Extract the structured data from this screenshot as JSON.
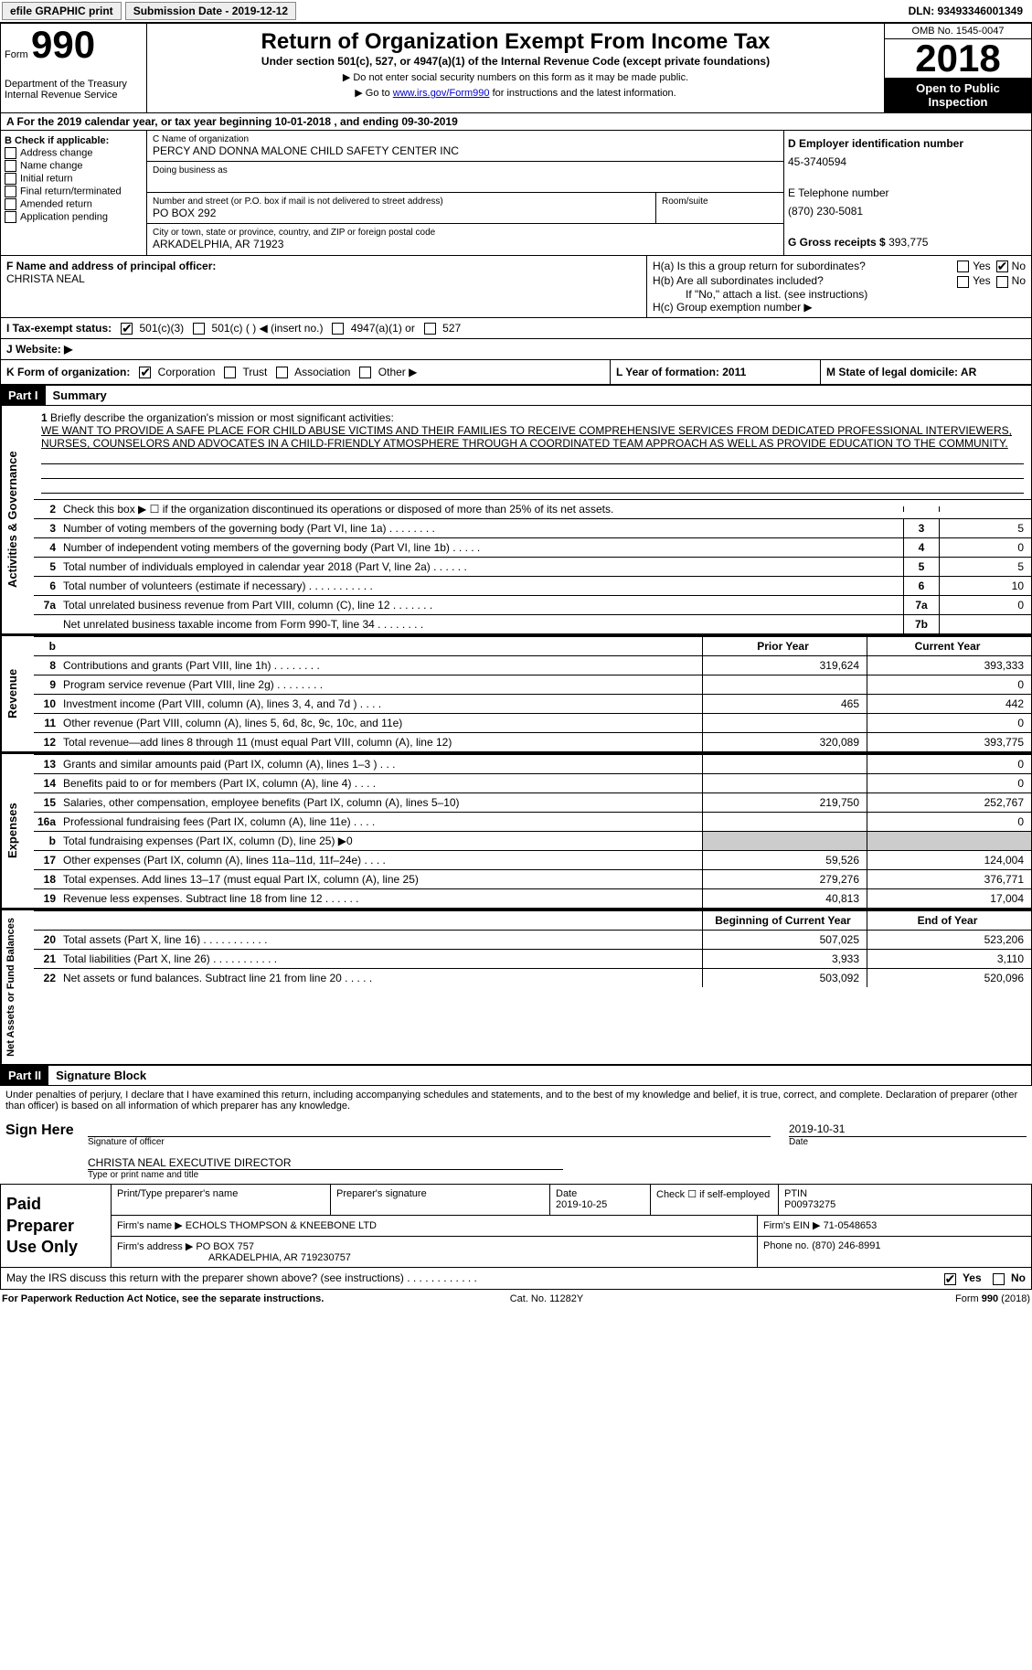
{
  "top": {
    "efile": "efile GRAPHIC print",
    "sub_btn": "Submission Date - 2019-12-12",
    "dln": "DLN: 93493346001349"
  },
  "header": {
    "form_word": "Form",
    "form_num": "990",
    "dept": "Department of the Treasury\nInternal Revenue Service",
    "title": "Return of Organization Exempt From Income Tax",
    "sub": "Under section 501(c), 527, or 4947(a)(1) of the Internal Revenue Code (except private foundations)",
    "note1": "▶ Do not enter social security numbers on this form as it may be made public.",
    "note2_pre": "▶ Go to ",
    "note2_link": "www.irs.gov/Form990",
    "note2_post": " for instructions and the latest information.",
    "omb": "OMB No. 1545-0047",
    "year": "2018",
    "open": "Open to Public Inspection"
  },
  "period": "A For the 2019 calendar year, or tax year beginning 10-01-2018    , and ending 09-30-2019",
  "b": {
    "title": "B Check if applicable:",
    "items": [
      "Address change",
      "Name change",
      "Initial return",
      "Final return/terminated",
      "Amended return",
      "Application pending"
    ]
  },
  "c": {
    "label": "C Name of organization",
    "name": "PERCY AND DONNA MALONE CHILD SAFETY CENTER INC",
    "dba_label": "Doing business as",
    "addr_label": "Number and street (or P.O. box if mail is not delivered to street address)",
    "room_label": "Room/suite",
    "addr": "PO BOX 292",
    "city_label": "City or town, state or province, country, and ZIP or foreign postal code",
    "city": "ARKADELPHIA, AR   71923"
  },
  "d": {
    "label": "D Employer identification number",
    "val": "45-3740594"
  },
  "e": {
    "label": "E Telephone number",
    "val": "(870) 230-5081"
  },
  "g": {
    "label": "G Gross receipts $",
    "val": "393,775"
  },
  "f": {
    "label": "F  Name and address of principal officer:",
    "name": "CHRISTA NEAL"
  },
  "h": {
    "a": "H(a)  Is this a group return for subordinates?",
    "b": "H(b)  Are all subordinates included?",
    "note": "If \"No,\" attach a list. (see instructions)",
    "c": "H(c)  Group exemption number ▶",
    "yes": "Yes",
    "no": "No"
  },
  "i": {
    "label": "I    Tax-exempt status:",
    "o1": "501(c)(3)",
    "o2": "501(c) (  ) ◀ (insert no.)",
    "o3": "4947(a)(1) or",
    "o4": "527"
  },
  "j": {
    "label": "J    Website: ▶"
  },
  "k": {
    "label": "K Form of organization:",
    "o1": "Corporation",
    "o2": "Trust",
    "o3": "Association",
    "o4": "Other ▶"
  },
  "l": {
    "label": "L Year of formation: 2011"
  },
  "m": {
    "label": "M State of legal domicile: AR"
  },
  "part1": {
    "hdr": "Part I",
    "title": "Summary"
  },
  "mission": {
    "n": "1",
    "label": "Briefly describe the organization's mission or most significant activities:",
    "text": "WE WANT TO PROVIDE A SAFE PLACE FOR CHILD ABUSE VICTIMS AND THEIR FAMILIES TO RECEIVE COMPREHENSIVE SERVICES FROM DEDICATED PROFESSIONAL INTERVIEWERS, NURSES, COUNSELORS AND ADVOCATES IN A CHILD-FRIENDLY ATMOSPHERE THROUGH A COORDINATED TEAM APPROACH AS WELL AS PROVIDE EDUCATION TO THE COMMUNITY."
  },
  "side": {
    "ag": "Activities & Governance",
    "rev": "Revenue",
    "exp": "Expenses",
    "na": "Net Assets or Fund Balances"
  },
  "rows_num": [
    {
      "n": "2",
      "t": "Check this box ▶ ☐  if the organization discontinued its operations or disposed of more than 25% of its net assets.",
      "box": "",
      "v": ""
    },
    {
      "n": "3",
      "t": "Number of voting members of the governing body (Part VI, line 1a)    .    .    .    .    .    .    .    .",
      "box": "3",
      "v": "5"
    },
    {
      "n": "4",
      "t": "Number of independent voting members of the governing body (Part VI, line 1b)    .    .    .    .    .",
      "box": "4",
      "v": "0"
    },
    {
      "n": "5",
      "t": "Total number of individuals employed in calendar year 2018 (Part V, line 2a)    .    .    .    .    .    .",
      "box": "5",
      "v": "5"
    },
    {
      "n": "6",
      "t": "Total number of volunteers (estimate if necessary)    .    .    .    .    .    .    .    .    .    .    .",
      "box": "6",
      "v": "10"
    },
    {
      "n": "7a",
      "t": "Total unrelated business revenue from Part VIII, column (C), line 12    .    .    .    .    .    .    .",
      "box": "7a",
      "v": "0"
    },
    {
      "n": "",
      "t": "Net unrelated business taxable income from Form 990-T, line 34    .    .    .    .    .    .    .    .",
      "box": "7b",
      "v": ""
    }
  ],
  "col_hdr": {
    "prior": "Prior Year",
    "curr": "Current Year",
    "beg": "Beginning of Current Year",
    "end": "End of Year"
  },
  "rev_rows": [
    {
      "n": "b",
      "t": "",
      "c1": "",
      "c2": "",
      "hdr": true
    },
    {
      "n": "8",
      "t": "Contributions and grants (Part VIII, line 1h)    .    .    .    .    .    .    .    .",
      "c1": "319,624",
      "c2": "393,333"
    },
    {
      "n": "9",
      "t": "Program service revenue (Part VIII, line 2g)    .    .    .    .    .    .    .    .",
      "c1": "",
      "c2": "0"
    },
    {
      "n": "10",
      "t": "Investment income (Part VIII, column (A), lines 3, 4, and 7d )    .    .    .    .",
      "c1": "465",
      "c2": "442"
    },
    {
      "n": "11",
      "t": "Other revenue (Part VIII, column (A), lines 5, 6d, 8c, 9c, 10c, and 11e)",
      "c1": "",
      "c2": "0"
    },
    {
      "n": "12",
      "t": "Total revenue—add lines 8 through 11 (must equal Part VIII, column (A), line 12)",
      "c1": "320,089",
      "c2": "393,775"
    }
  ],
  "exp_rows": [
    {
      "n": "13",
      "t": "Grants and similar amounts paid (Part IX, column (A), lines 1–3 )    .    .    .",
      "c1": "",
      "c2": "0"
    },
    {
      "n": "14",
      "t": "Benefits paid to or for members (Part IX, column (A), line 4)    .    .    .    .",
      "c1": "",
      "c2": "0"
    },
    {
      "n": "15",
      "t": "Salaries, other compensation, employee benefits (Part IX, column (A), lines 5–10)",
      "c1": "219,750",
      "c2": "252,767"
    },
    {
      "n": "16a",
      "t": "Professional fundraising fees (Part IX, column (A), line 11e)    .    .    .    .",
      "c1": "",
      "c2": "0"
    },
    {
      "n": "b",
      "t": "Total fundraising expenses (Part IX, column (D), line 25) ▶0",
      "c1": "grey",
      "c2": "grey"
    },
    {
      "n": "17",
      "t": "Other expenses (Part IX, column (A), lines 11a–11d, 11f–24e)    .    .    .    .",
      "c1": "59,526",
      "c2": "124,004"
    },
    {
      "n": "18",
      "t": "Total expenses. Add lines 13–17 (must equal Part IX, column (A), line 25)",
      "c1": "279,276",
      "c2": "376,771"
    },
    {
      "n": "19",
      "t": "Revenue less expenses. Subtract line 18 from line 12    .    .    .    .    .    .",
      "c1": "40,813",
      "c2": "17,004"
    }
  ],
  "na_rows": [
    {
      "n": "",
      "t": "",
      "c1": "Beginning of Current Year",
      "c2": "End of Year",
      "hdr": true
    },
    {
      "n": "20",
      "t": "Total assets (Part X, line 16)    .    .    .    .    .    .    .    .    .    .    .",
      "c1": "507,025",
      "c2": "523,206"
    },
    {
      "n": "21",
      "t": "Total liabilities (Part X, line 26)    .    .    .    .    .    .    .    .    .    .    .",
      "c1": "3,933",
      "c2": "3,110"
    },
    {
      "n": "22",
      "t": "Net assets or fund balances. Subtract line 21 from line 20    .    .    .    .    .",
      "c1": "503,092",
      "c2": "520,096"
    }
  ],
  "part2": {
    "hdr": "Part II",
    "title": "Signature Block"
  },
  "sig": {
    "decl": "Under penalties of perjury, I declare that I have examined this return, including accompanying schedules and statements, and to the best of my knowledge and belief, it is true, correct, and complete. Declaration of preparer (other than officer) is based on all information of which preparer has any knowledge.",
    "here": "Sign Here",
    "date": "2019-10-31",
    "sig_label": "Signature of officer",
    "date_label": "Date",
    "name": "CHRISTA NEAL  EXECUTIVE DIRECTOR",
    "name_label": "Type or print name and title"
  },
  "prep": {
    "lab": "Paid Preparer Use Only",
    "r1": {
      "c1": "Print/Type preparer's name",
      "c2": "Preparer's signature",
      "c3l": "Date",
      "c3": "2019-10-25",
      "c4": "Check ☐ if self-employed",
      "c5l": "PTIN",
      "c5": "P00973275"
    },
    "r2": {
      "c1l": "Firm's name      ▶",
      "c1": "ECHOLS THOMPSON & KNEEBONE LTD",
      "c2l": "Firm's EIN ▶",
      "c2": "71-0548653"
    },
    "r3": {
      "c1l": "Firm's address ▶",
      "c1": "PO BOX 757",
      "c1b": "ARKADELPHIA, AR   719230757",
      "c2l": "Phone no.",
      "c2": "(870) 246-8991"
    }
  },
  "discuss": {
    "t": "May the IRS discuss this return with the preparer shown above? (see instructions)    .    .    .    .    .    .    .    .    .    .    .    .",
    "yes": "Yes",
    "no": "No"
  },
  "footer": {
    "l": "For Paperwork Reduction Act Notice, see the separate instructions.",
    "m": "Cat. No. 11282Y",
    "r": "Form 990 (2018)"
  }
}
